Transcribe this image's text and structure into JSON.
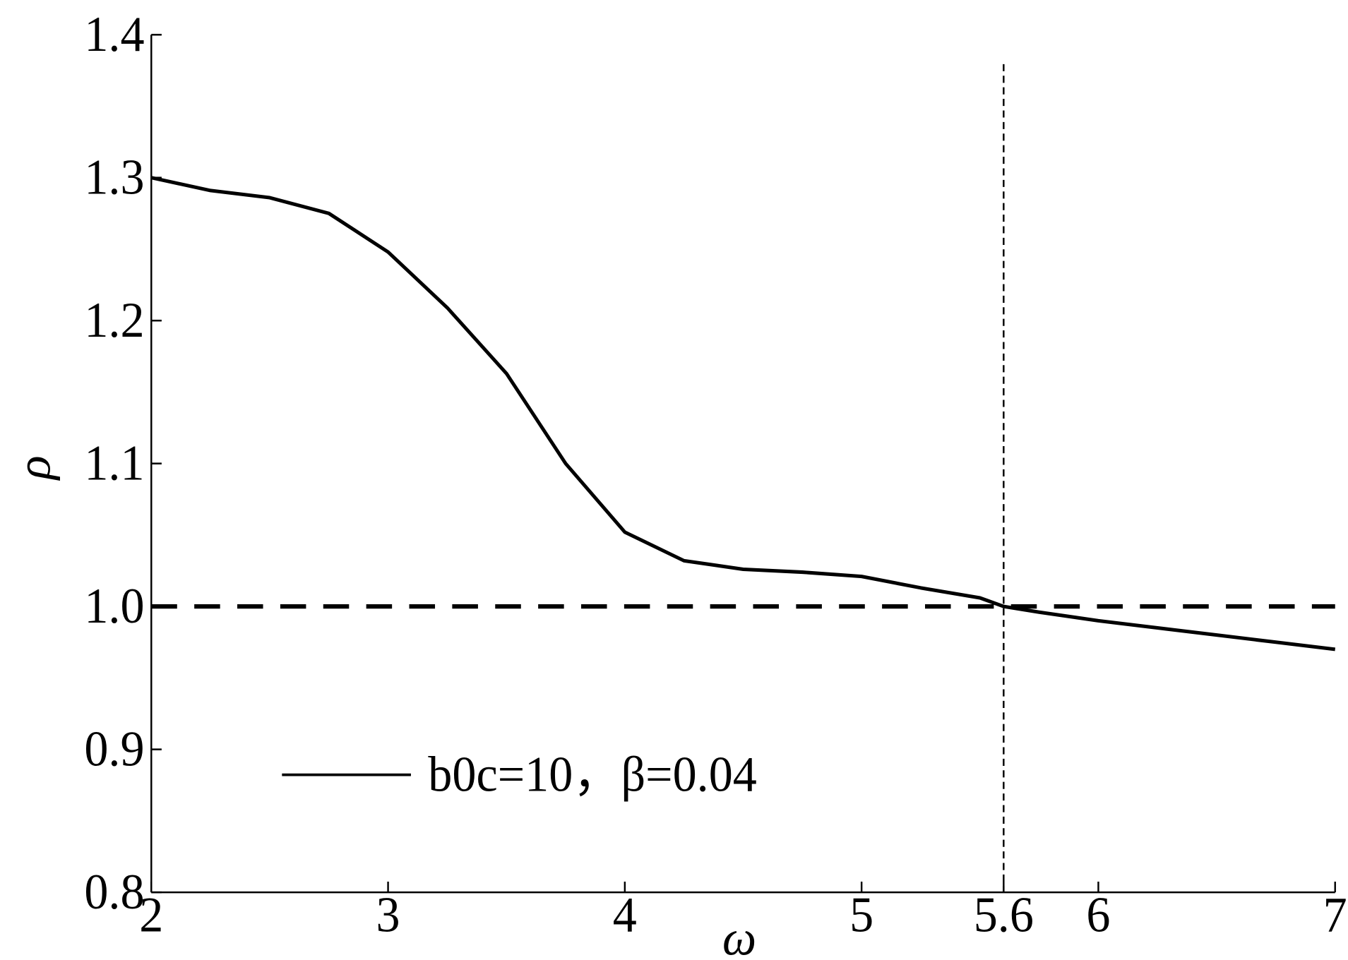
{
  "chart_data": {
    "type": "line",
    "x_label": "ω",
    "y_label": "ρ",
    "xlim": [
      2,
      7
    ],
    "ylim": [
      0.8,
      1.4
    ],
    "xticks": [
      2,
      3,
      4,
      5,
      5.6,
      6,
      7
    ],
    "yticks": [
      1.4,
      1.3,
      1.2,
      1.1,
      {
        "value": 1,
        "label": "1.0"
      },
      0.9,
      0.8
    ],
    "hlines": [
      1
    ],
    "vlines": [
      5.6
    ],
    "legend": "lower left",
    "x": [
      2,
      2.25,
      2.5,
      2.75,
      3,
      3.25,
      3.5,
      3.75,
      4,
      4.25,
      4.5,
      4.75,
      5,
      5.25,
      5.5,
      5.6,
      5.75,
      6,
      6.25,
      6.5,
      6.75,
      7
    ],
    "series": [
      {
        "name": "b0c=10，β=0.04",
        "color": "#000000",
        "values": [
          1.3,
          1.291,
          1.286,
          1.275,
          1.248,
          1.209,
          1.163,
          1.1,
          1.052,
          1.032,
          1.026,
          1.024,
          1.021,
          1.013,
          1.006,
          1.0,
          0.996,
          0.99,
          0.985,
          0.98,
          0.975,
          0.97
        ]
      }
    ]
  }
}
